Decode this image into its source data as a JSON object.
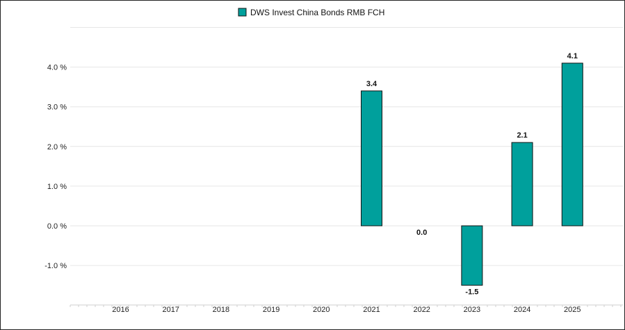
{
  "chart_data": {
    "type": "bar",
    "categories": [
      "2016",
      "2017",
      "2018",
      "2019",
      "2020",
      "2021",
      "2022",
      "2023",
      "2024",
      "2025"
    ],
    "series": [
      {
        "name": "DWS Invest China Bonds RMB FCH",
        "values": [
          null,
          null,
          null,
          null,
          null,
          3.4,
          0.0,
          -1.5,
          2.1,
          4.1
        ],
        "labels": [
          "",
          "",
          "",
          "",
          "",
          "3.4",
          "0.0",
          "-1.5",
          "2.1",
          "4.1"
        ]
      }
    ],
    "ylim": [
      -2.0,
      5.0
    ],
    "yticks": [
      -1.0,
      0.0,
      1.0,
      2.0,
      3.0,
      4.0
    ],
    "ytick_labels": [
      "-1.0 %",
      "0.0 %",
      "1.0 %",
      "2.0 %",
      "3.0 %",
      "4.0 %"
    ],
    "grid": true,
    "legend_position": "top-center",
    "colors": {
      "bar_fill": "#00a09c",
      "bar_stroke": "#111111",
      "grid": "#e6e6e6",
      "axis": "#cfcfcf"
    }
  }
}
